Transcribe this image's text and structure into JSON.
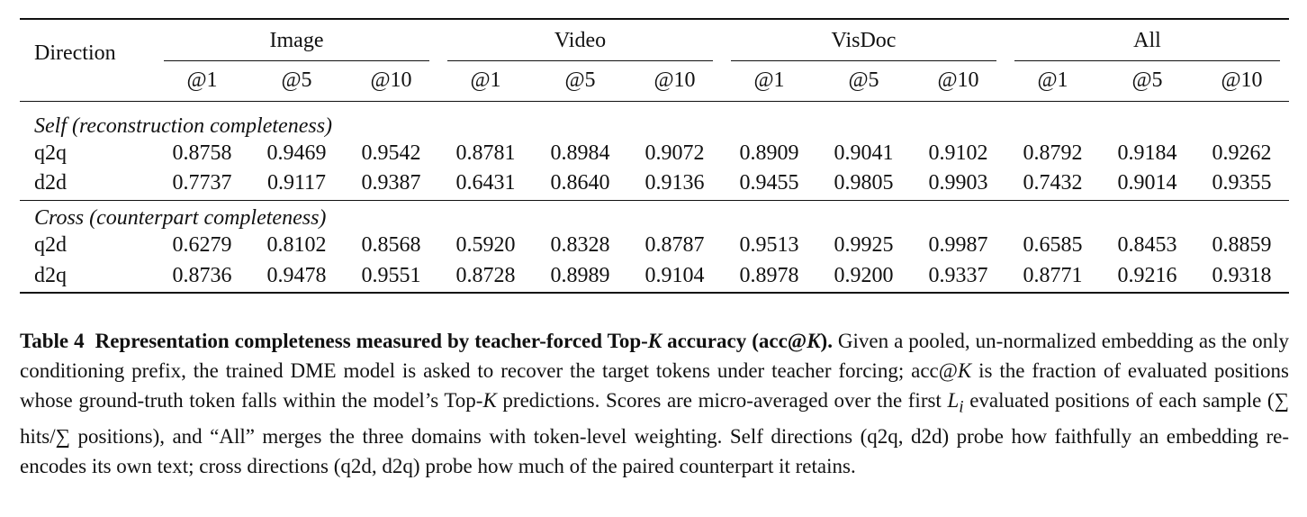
{
  "table": {
    "header": {
      "direction": "Direction",
      "groups": [
        "Image",
        "Video",
        "VisDoc",
        "All"
      ],
      "ks": [
        "@1",
        "@5",
        "@10"
      ]
    },
    "sections": [
      {
        "title": "Self (reconstruction completeness)",
        "rows": [
          {
            "label": "q2q",
            "values": [
              "0.8758",
              "0.9469",
              "0.9542",
              "0.8781",
              "0.8984",
              "0.9072",
              "0.8909",
              "0.9041",
              "0.9102",
              "0.8792",
              "0.9184",
              "0.9262"
            ]
          },
          {
            "label": "d2d",
            "values": [
              "0.7737",
              "0.9117",
              "0.9387",
              "0.6431",
              "0.8640",
              "0.9136",
              "0.9455",
              "0.9805",
              "0.9903",
              "0.7432",
              "0.9014",
              "0.9355"
            ]
          }
        ]
      },
      {
        "title": "Cross (counterpart completeness)",
        "rows": [
          {
            "label": "q2d",
            "values": [
              "0.6279",
              "0.8102",
              "0.8568",
              "0.5920",
              "0.8328",
              "0.8787",
              "0.9513",
              "0.9925",
              "0.9987",
              "0.6585",
              "0.8453",
              "0.8859"
            ]
          },
          {
            "label": "d2q",
            "values": [
              "0.8736",
              "0.9478",
              "0.9551",
              "0.8728",
              "0.8989",
              "0.9104",
              "0.8978",
              "0.9200",
              "0.9337",
              "0.8771",
              "0.9216",
              "0.9318"
            ]
          }
        ]
      }
    ]
  },
  "caption": {
    "segments": [
      "Table 4",
      "Representation completeness measured by teacher-forced Top-",
      "K",
      " accuracy (acc@",
      "K",
      ").",
      " Given a pooled, un-normalized embedding as the only conditioning prefix, the trained DME model is asked to recover the target tokens under teacher forcing; acc@",
      "K",
      " is the fraction of evaluated positions whose ground-truth token falls within the model’s Top-",
      "K",
      " predictions. Scores are micro-averaged over the first ",
      "L",
      "i",
      " evaluated positions of each sample (∑ hits/∑ positions), and “All” merges the three domains with token-level weighting. Self directions (q2q, d2d) probe how faithfully an embedding re-encodes its own text; cross directions (q2d, d2q) probe how much of the paired counterpart it retains."
    ]
  }
}
